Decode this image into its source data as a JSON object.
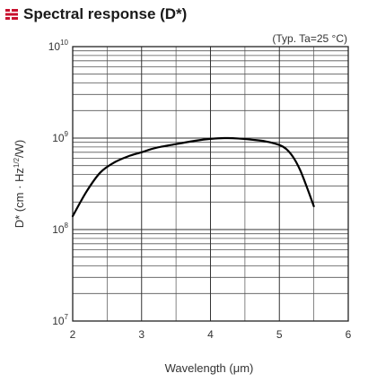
{
  "header": {
    "title": "Spectral response (D*)",
    "icon": "red-bar-bullet-icon",
    "icon_color": "#c8102e"
  },
  "chart_data": {
    "type": "line",
    "title": "Spectral response (D*)",
    "note": "(Typ. Ta=25 °C)",
    "xlabel": "Wavelength (μm)",
    "ylabel": "D* (cm · Hz1/2/W)",
    "ylabel_parts": {
      "before": "D* (cm · Hz",
      "sup": "1/2",
      "after": "/W)"
    },
    "xlim": [
      2,
      6
    ],
    "ylim": [
      10000000,
      10000000000
    ],
    "yscale": "log",
    "grid": true,
    "x_ticks": [
      "2",
      "3",
      "4",
      "5",
      "6"
    ],
    "y_ticks": [
      {
        "base": "10",
        "exp": "7"
      },
      {
        "base": "10",
        "exp": "8"
      },
      {
        "base": "10",
        "exp": "9"
      },
      {
        "base": "10",
        "exp": "10"
      }
    ],
    "series": [
      {
        "color": "#000000",
        "x": [
          2.0,
          2.2,
          2.4,
          2.6,
          2.8,
          3.0,
          3.2,
          3.5,
          3.8,
          4.0,
          4.2,
          4.4,
          4.6,
          4.8,
          5.0,
          5.1,
          5.2,
          5.3,
          5.4,
          5.5
        ],
        "y": [
          140000000,
          260000000,
          420000000,
          540000000,
          630000000,
          700000000,
          780000000,
          860000000,
          940000000,
          980000000,
          1000000000,
          990000000,
          960000000,
          920000000,
          840000000,
          760000000,
          620000000,
          450000000,
          290000000,
          180000000
        ]
      }
    ]
  }
}
